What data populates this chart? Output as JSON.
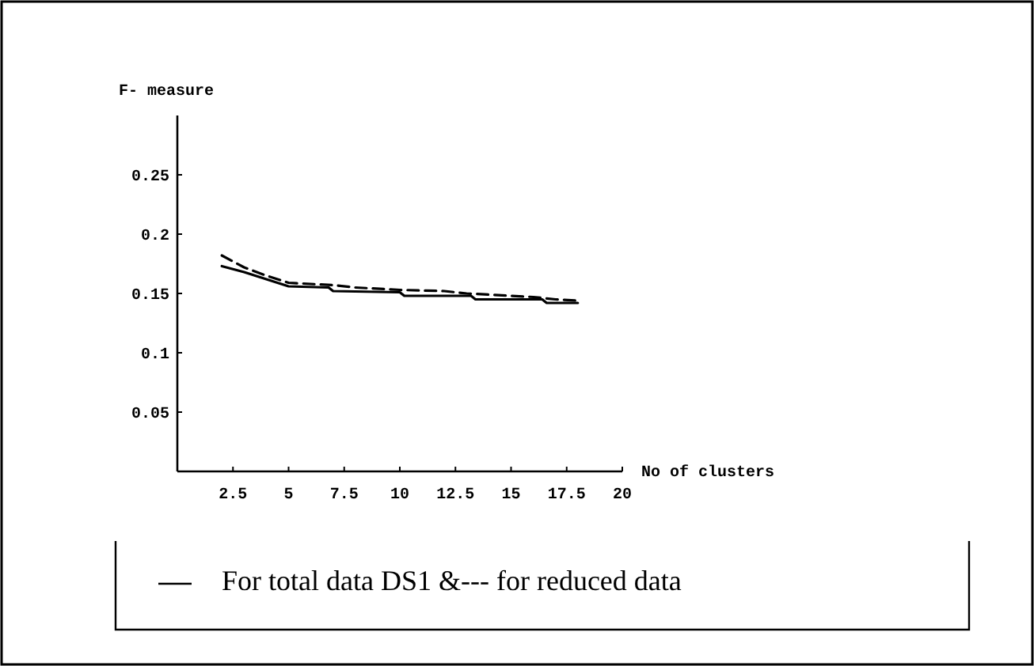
{
  "chart_data": {
    "type": "line",
    "ylabel": "F- measure",
    "xlabel": "No of clusters",
    "xlim": [
      0,
      20
    ],
    "xticks": [
      2.5,
      5,
      7.5,
      10,
      12.5,
      15,
      17.5,
      20
    ],
    "ylim": [
      0,
      0.3
    ],
    "yticks": [
      0.05,
      0.1,
      0.15,
      0.2,
      0.25
    ],
    "grid": false,
    "marker": "none",
    "series": [
      {
        "color": "#000000",
        "line_style": "solid",
        "x": [
          2,
          3,
          4,
          5,
          6.8,
          7,
          10,
          10.2,
          13.2,
          13.4,
          16.4,
          16.6,
          18
        ],
        "values": [
          0.173,
          0.168,
          0.162,
          0.156,
          0.155,
          0.152,
          0.151,
          0.148,
          0.148,
          0.145,
          0.145,
          0.142,
          0.142
        ]
      },
      {
        "color": "#000000",
        "line_style": "dashed",
        "x": [
          2,
          3,
          4,
          5,
          6,
          7,
          8,
          10,
          12,
          13,
          15,
          16,
          17,
          18
        ],
        "values": [
          0.182,
          0.172,
          0.165,
          0.159,
          0.158,
          0.157,
          0.155,
          0.153,
          0.152,
          0.15,
          0.148,
          0.147,
          0.145,
          0.144
        ]
      }
    ],
    "annotations": [
      "For total data DS1 &--- for reduced data"
    ]
  }
}
